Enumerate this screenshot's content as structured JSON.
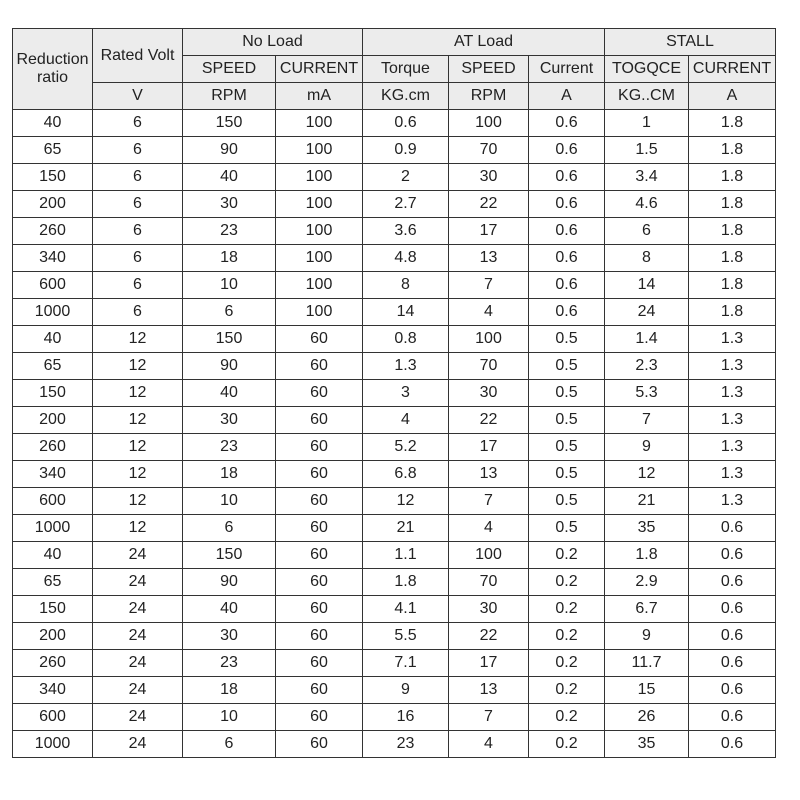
{
  "header": {
    "reduction_ratio": "Reduction ratio",
    "rated_volt": "Rated Volt",
    "no_load": "No Load",
    "at_load": "AT  Load",
    "stall": "STALL",
    "sub": [
      "SPEED",
      "CURRENT",
      "Torque",
      "SPEED",
      "Current",
      "TOGQCE",
      "CURRENT"
    ],
    "units": [
      "V",
      "RPM",
      "mA",
      "KG.cm",
      "RPM",
      "A",
      "KG..CM",
      "A"
    ]
  },
  "rows": [
    [
      "40",
      "6",
      "150",
      "100",
      "0.6",
      "100",
      "0.6",
      "1",
      "1.8"
    ],
    [
      "65",
      "6",
      "90",
      "100",
      "0.9",
      "70",
      "0.6",
      "1.5",
      "1.8"
    ],
    [
      "150",
      "6",
      "40",
      "100",
      "2",
      "30",
      "0.6",
      "3.4",
      "1.8"
    ],
    [
      "200",
      "6",
      "30",
      "100",
      "2.7",
      "22",
      "0.6",
      "4.6",
      "1.8"
    ],
    [
      "260",
      "6",
      "23",
      "100",
      "3.6",
      "17",
      "0.6",
      "6",
      "1.8"
    ],
    [
      "340",
      "6",
      "18",
      "100",
      "4.8",
      "13",
      "0.6",
      "8",
      "1.8"
    ],
    [
      "600",
      "6",
      "10",
      "100",
      "8",
      "7",
      "0.6",
      "14",
      "1.8"
    ],
    [
      "1000",
      "6",
      "6",
      "100",
      "14",
      "4",
      "0.6",
      "24",
      "1.8"
    ],
    [
      "40",
      "12",
      "150",
      "60",
      "0.8",
      "100",
      "0.5",
      "1.4",
      "1.3"
    ],
    [
      "65",
      "12",
      "90",
      "60",
      "1.3",
      "70",
      "0.5",
      "2.3",
      "1.3"
    ],
    [
      "150",
      "12",
      "40",
      "60",
      "3",
      "30",
      "0.5",
      "5.3",
      "1.3"
    ],
    [
      "200",
      "12",
      "30",
      "60",
      "4",
      "22",
      "0.5",
      "7",
      "1.3"
    ],
    [
      "260",
      "12",
      "23",
      "60",
      "5.2",
      "17",
      "0.5",
      "9",
      "1.3"
    ],
    [
      "340",
      "12",
      "18",
      "60",
      "6.8",
      "13",
      "0.5",
      "12",
      "1.3"
    ],
    [
      "600",
      "12",
      "10",
      "60",
      "12",
      "7",
      "0.5",
      "21",
      "1.3"
    ],
    [
      "1000",
      "12",
      "6",
      "60",
      "21",
      "4",
      "0.5",
      "35",
      "0.6"
    ],
    [
      "40",
      "24",
      "150",
      "60",
      "1.1",
      "100",
      "0.2",
      "1.8",
      "0.6"
    ],
    [
      "65",
      "24",
      "90",
      "60",
      "1.8",
      "70",
      "0.2",
      "2.9",
      "0.6"
    ],
    [
      "150",
      "24",
      "40",
      "60",
      "4.1",
      "30",
      "0.2",
      "6.7",
      "0.6"
    ],
    [
      "200",
      "24",
      "30",
      "60",
      "5.5",
      "22",
      "0.2",
      "9",
      "0.6"
    ],
    [
      "260",
      "24",
      "23",
      "60",
      "7.1",
      "17",
      "0.2",
      "11.7",
      "0.6"
    ],
    [
      "340",
      "24",
      "18",
      "60",
      "9",
      "13",
      "0.2",
      "15",
      "0.6"
    ],
    [
      "600",
      "24",
      "10",
      "60",
      "16",
      "7",
      "0.2",
      "26",
      "0.6"
    ],
    [
      "1000",
      "24",
      "6",
      "60",
      "23",
      "4",
      "0.2",
      "35",
      "0.6"
    ]
  ]
}
